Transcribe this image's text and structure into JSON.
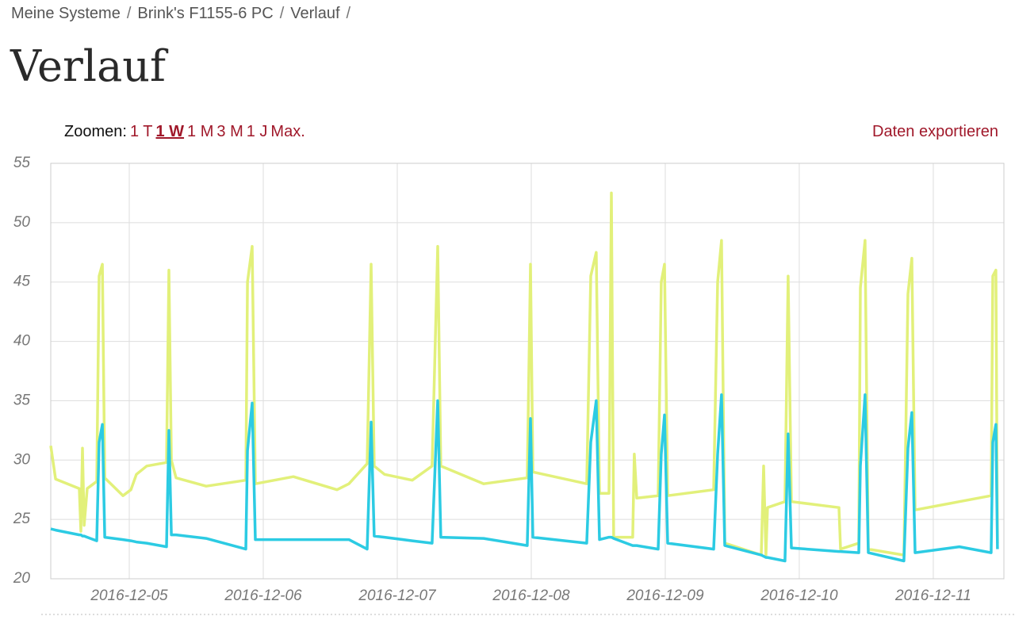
{
  "breadcrumb": [
    "Meine Systeme",
    "Brink's F1155-6 PC",
    "Verlauf"
  ],
  "breadcrumb_separator": "/",
  "heading": "Verlauf",
  "zoom": {
    "label": "Zoomen:",
    "options": [
      {
        "label": "1 T"
      },
      {
        "label": "1 W",
        "active": true
      },
      {
        "label": "1 M"
      },
      {
        "label": "3 M"
      },
      {
        "label": "1 J"
      },
      {
        "label": "Max."
      }
    ]
  },
  "export": "Daten exportieren",
  "chart_data": {
    "type": "line",
    "x": [
      4.414,
      4.45,
      4.627,
      4.639,
      4.651,
      4.663,
      4.686,
      4.757,
      4.775,
      4.799,
      4.817,
      4.953,
      5.012,
      5.053,
      5.13,
      5.278,
      5.296,
      5.314,
      5.349,
      5.574,
      5.87,
      5.882,
      5.917,
      5.941,
      6.225,
      6.55,
      6.639,
      6.775,
      6.805,
      6.828,
      6.905,
      7.112,
      7.26,
      7.302,
      7.325,
      7.645,
      7.97,
      7.994,
      8.012,
      8.414,
      8.444,
      8.485,
      8.509,
      8.58,
      8.598,
      8.615,
      8.757,
      8.769,
      8.787,
      8.947,
      8.97,
      8.994,
      9.018,
      9.361,
      9.391,
      9.42,
      9.444,
      9.716,
      9.734,
      9.751,
      9.763,
      9.893,
      9.917,
      9.941,
      10.296,
      10.308,
      10.444,
      10.456,
      10.491,
      10.515,
      10.781,
      10.811,
      10.84,
      10.864,
      11.195,
      11.432,
      11.444,
      11.467,
      11.479
    ],
    "series": [
      {
        "color": "#e2f07a",
        "values": [
          31.2,
          28.4,
          27.6,
          24,
          31,
          24.5,
          27.6,
          28.2,
          45.5,
          46.5,
          28.5,
          27,
          27.5,
          28.8,
          29.5,
          29.8,
          46,
          30,
          28.5,
          27.8,
          28.3,
          45,
          48,
          28,
          28.6,
          27.5,
          28,
          29.7,
          46.5,
          29.5,
          28.8,
          28.3,
          29.5,
          48,
          29.5,
          28,
          28.5,
          46.5,
          29,
          28,
          45.5,
          47.5,
          27.2,
          27.2,
          52.5,
          23.5,
          23.5,
          30.5,
          26.8,
          27,
          45,
          46.5,
          27,
          27.5,
          45,
          48.5,
          23,
          22,
          29.5,
          22,
          26,
          26.5,
          45.5,
          26.5,
          26,
          22.5,
          23,
          44.5,
          48.5,
          22.5,
          22,
          44,
          47,
          25.8,
          26.5,
          27,
          45.5,
          46,
          23
        ]
      },
      {
        "color": "#2ccbe3",
        "values": [
          24.2,
          24.1,
          23.7,
          23.7,
          23.6,
          23.6,
          23.5,
          23.2,
          31.5,
          33,
          23.5,
          23.3,
          23.2,
          23.1,
          23,
          22.7,
          32.5,
          23.7,
          23.7,
          23.4,
          22.5,
          30.8,
          34.8,
          23.3,
          23.3,
          23.3,
          23.3,
          22.5,
          33.2,
          23.6,
          23.5,
          23.2,
          23,
          35,
          23.5,
          23.4,
          22.8,
          33.5,
          23.5,
          23,
          31.5,
          35,
          23.3,
          23.5,
          23.5,
          23.4,
          22.8,
          22.8,
          22.8,
          22.5,
          30.5,
          33.8,
          23,
          22.5,
          30.5,
          35.5,
          22.8,
          22,
          21.9,
          21.8,
          21.8,
          21.5,
          32.2,
          22.6,
          22.3,
          22.3,
          22.2,
          29.5,
          35.5,
          22.2,
          21.5,
          31,
          34,
          22.2,
          22.7,
          22.2,
          31.5,
          33,
          22.5
        ]
      }
    ],
    "xlim": [
      4.414,
      11.527
    ],
    "xticks": [
      {
        "value": 5,
        "label": "2016-12-05"
      },
      {
        "value": 6,
        "label": "2016-12-06"
      },
      {
        "value": 7,
        "label": "2016-12-07"
      },
      {
        "value": 8,
        "label": "2016-12-08"
      },
      {
        "value": 9,
        "label": "2016-12-09"
      },
      {
        "value": 10,
        "label": "2016-12-10"
      },
      {
        "value": 11,
        "label": "2016-12-11"
      }
    ],
    "ylim": [
      20,
      55
    ],
    "yticks": [
      20,
      25,
      30,
      35,
      40,
      45,
      50,
      55
    ],
    "grid": true
  }
}
